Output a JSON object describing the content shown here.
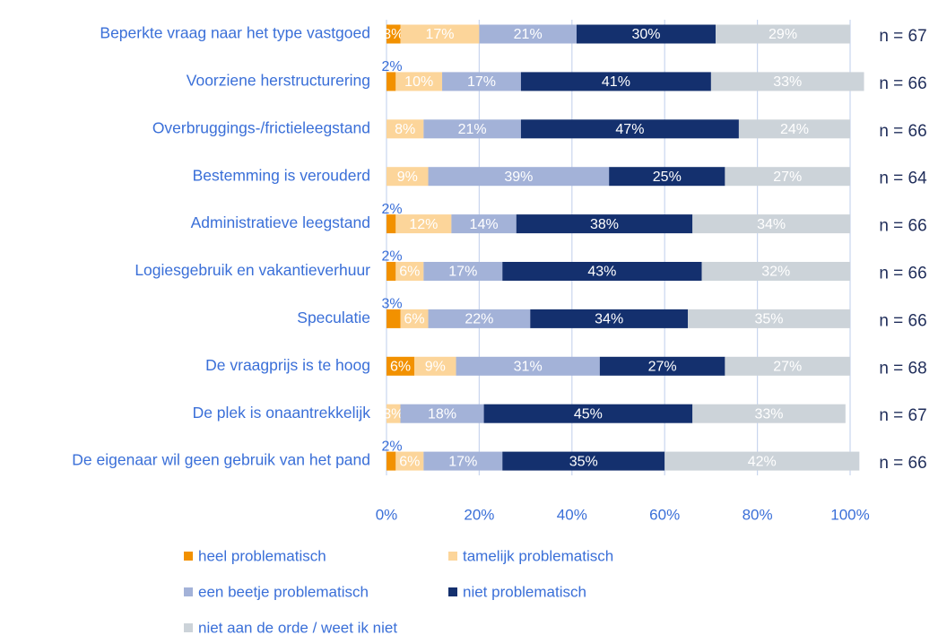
{
  "chart_data": {
    "type": "stacked-bar-horizontal",
    "categories": [
      "Beperkte vraag naar het type vastgoed",
      "Voorziene herstructurering",
      "Overbruggings-/frictieleegstand",
      "Bestemming is verouderd",
      "Administratieve leegstand",
      "Logiesgebruik en vakantieverhuur",
      "Speculatie",
      "De vraagprijs is te hoog",
      "De plek is onaantrekkelijk",
      "De eigenaar wil geen gebruik van het pand"
    ],
    "series": [
      {
        "name": "heel problematisch",
        "color": "#f29100",
        "values": [
          3,
          2,
          null,
          null,
          2,
          2,
          3,
          6,
          null,
          2
        ],
        "value_labels": [
          "3%",
          "2%",
          null,
          null,
          "2%",
          "2%",
          "3%",
          "6%",
          null,
          "2%"
        ]
      },
      {
        "name": "tamelijk problematisch",
        "color": "#fcd59a",
        "values": [
          17,
          10,
          8,
          9,
          12,
          6,
          6,
          9,
          3,
          6
        ],
        "value_labels": [
          "17%",
          "10%",
          "8%",
          "9%",
          "12%",
          "6%",
          "6%",
          "9%",
          "3%",
          "6%"
        ]
      },
      {
        "name": "een beetje problematisch",
        "color": "#a3b2d8",
        "values": [
          21,
          17,
          21,
          39,
          14,
          17,
          22,
          31,
          18,
          17
        ],
        "value_labels": [
          "21%",
          "17%",
          "21%",
          "39%",
          "14%",
          "17%",
          "22%",
          "31%",
          "18%",
          "17%"
        ]
      },
      {
        "name": "niet problematisch",
        "color": "#14306e",
        "values": [
          30,
          41,
          47,
          25,
          38,
          43,
          34,
          27,
          45,
          35
        ],
        "value_labels": [
          "30%",
          "41%",
          "47%",
          "25%",
          "38%",
          "43%",
          "34%",
          "27%",
          "45%",
          "35%"
        ]
      },
      {
        "name": "niet aan de orde / weet ik niet",
        "color": "#ccd3d9",
        "values": [
          29,
          33,
          24,
          27,
          34,
          32,
          35,
          27,
          33,
          42
        ],
        "value_labels": [
          "29%",
          "33%",
          "24%",
          "27%",
          "34%",
          "32%",
          "35%",
          "27%",
          "33%",
          "42%"
        ]
      }
    ],
    "n_labels": [
      "n = 67",
      "n = 66",
      "n = 66",
      "n = 64",
      "n = 66",
      "n = 66",
      "n = 66",
      "n = 68",
      "n = 67",
      "n = 66"
    ],
    "xlim": [
      0,
      100
    ],
    "xticks": [
      {
        "value": 0,
        "label": "0%"
      },
      {
        "value": 20,
        "label": "20%"
      },
      {
        "value": 40,
        "label": "40%"
      },
      {
        "value": 60,
        "label": "60%"
      },
      {
        "value": 80,
        "label": "80%"
      },
      {
        "value": 100,
        "label": "100%"
      }
    ],
    "grid": true
  }
}
